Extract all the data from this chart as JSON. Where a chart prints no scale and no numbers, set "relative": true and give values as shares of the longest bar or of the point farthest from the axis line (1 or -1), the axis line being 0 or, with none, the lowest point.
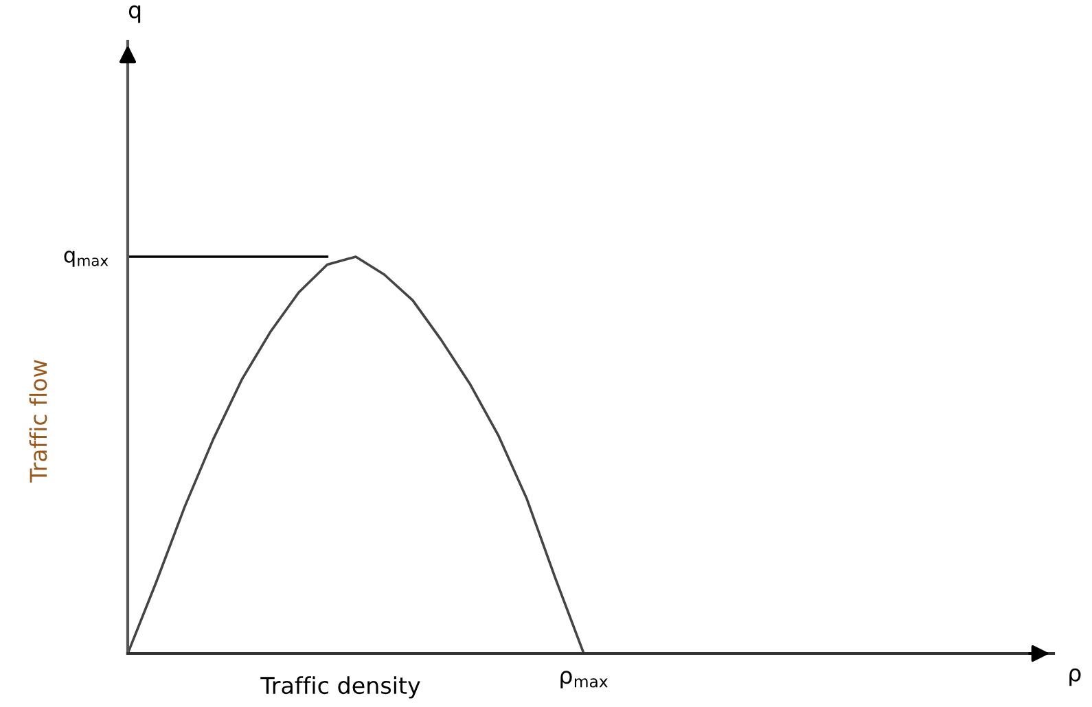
{
  "chart_data": {
    "type": "line",
    "relative": true,
    "xlabel": "Traffic density",
    "ylabel": "Traffic flow",
    "categories": [
      null,
      null,
      null,
      null,
      null,
      null,
      null,
      null,
      null,
      null,
      null,
      null,
      null,
      null,
      null,
      null,
      null
    ],
    "series": [
      {
        "color": "#444444",
        "values": [
          0,
          0.18,
          0.37,
          0.54,
          0.69,
          0.81,
          0.91,
          0.98,
          1,
          0.955,
          0.89,
          0.79,
          0.68,
          0.55,
          0.39,
          0.19,
          0
        ]
      }
    ],
    "ref_lines": [
      {
        "axis": "y",
        "value": 1,
        "label": "q$_{max}$",
        "color": "#000000"
      }
    ],
    "annotations": [
      "q",
      "ρ",
      "ρ$_{max}$"
    ],
    "legend": false,
    "marker": "none",
    "line_style": "solid",
    "tick_labels": false
  }
}
